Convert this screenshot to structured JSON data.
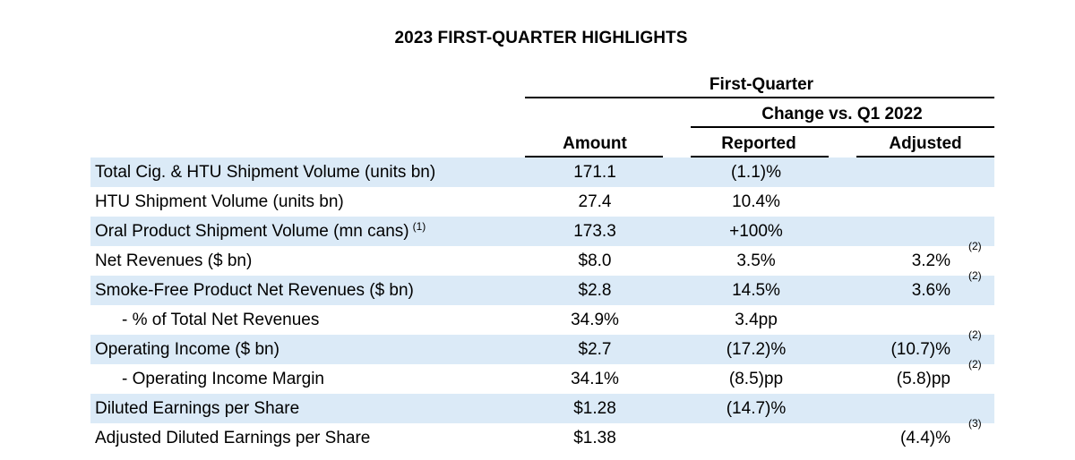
{
  "title": "2023 FIRST-QUARTER HIGHLIGHTS",
  "header": {
    "group": "First-Quarter",
    "subgroup": "Change vs. Q1 2022",
    "amount": "Amount",
    "reported": "Reported",
    "adjusted": "Adjusted"
  },
  "rows": [
    {
      "label": "Total Cig. & HTU Shipment Volume (units bn)",
      "label_note": "",
      "amount": "171.1",
      "reported": "(1.1)%",
      "adjusted": "",
      "adjusted_note": ""
    },
    {
      "label": "HTU Shipment Volume (units bn)",
      "label_note": "",
      "amount": "27.4",
      "reported": "10.4%",
      "adjusted": "",
      "adjusted_note": ""
    },
    {
      "label": "Oral Product Shipment Volume (mn cans)",
      "label_note": "(1)",
      "amount": "173.3",
      "reported": "+100%",
      "adjusted": "",
      "adjusted_note": ""
    },
    {
      "label": "Net Revenues ($ bn)",
      "label_note": "",
      "amount": "$8.0",
      "reported": "3.5%",
      "adjusted": "3.2%",
      "adjusted_note": "(2)"
    },
    {
      "label": "Smoke-Free Product Net Revenues ($ bn)",
      "label_note": "",
      "amount": "$2.8",
      "reported": "14.5%",
      "adjusted": "3.6%",
      "adjusted_note": "(2)"
    },
    {
      "label": "- % of Total Net Revenues",
      "label_note": "",
      "amount": "34.9%",
      "reported": "3.4pp",
      "adjusted": "",
      "adjusted_note": ""
    },
    {
      "label": "Operating Income ($ bn)",
      "label_note": "",
      "amount": "$2.7",
      "reported": "(17.2)%",
      "adjusted": "(10.7)%",
      "adjusted_note": "(2)"
    },
    {
      "label": "- Operating Income Margin",
      "label_note": "",
      "amount": "34.1%",
      "reported": "(8.5)pp",
      "adjusted": "(5.8)pp",
      "adjusted_note": "(2)"
    },
    {
      "label": "Diluted Earnings per Share",
      "label_note": "",
      "amount": "$1.28",
      "reported": "(14.7)%",
      "adjusted": "",
      "adjusted_note": ""
    },
    {
      "label": "Adjusted Diluted Earnings per Share",
      "label_note": "",
      "amount": "$1.38",
      "reported": "",
      "adjusted": "(4.4)%",
      "adjusted_note": "(3)"
    }
  ]
}
